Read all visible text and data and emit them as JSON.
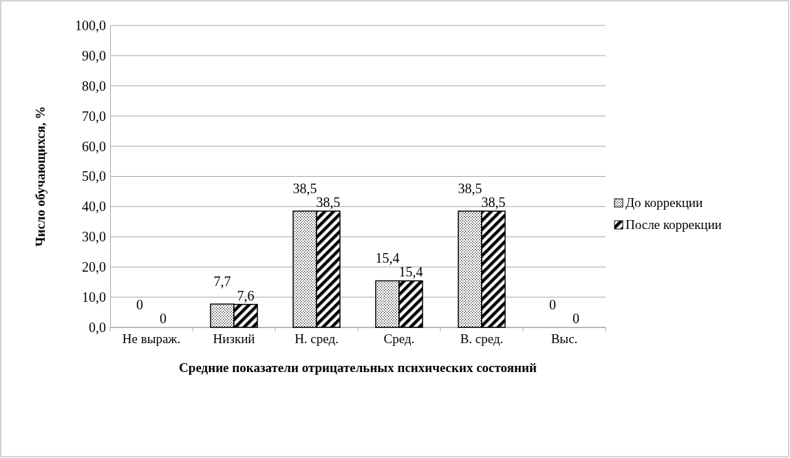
{
  "chart_data": {
    "type": "bar",
    "xlabel": "Средние показатели отрицательных психических состояний",
    "ylabel": "Число обучающихся, %",
    "categories": [
      "Не выраж.",
      "Низкий",
      "Н. сред.",
      "Сред.",
      "В. сред.",
      "Выс."
    ],
    "series": [
      {
        "name": "До коррекции",
        "color": "#000000",
        "values": [
          0,
          7.7,
          38.5,
          15.4,
          38.5,
          0
        ],
        "value_labels": [
          "0",
          "7,7",
          "38,5",
          "15,4",
          "38,5",
          "0"
        ]
      },
      {
        "name": "После коррекции",
        "color": "#000000",
        "values": [
          0,
          7.6,
          38.5,
          15.4,
          38.5,
          0
        ],
        "value_labels": [
          "0",
          "7,6",
          "38,5",
          "15,4",
          "38,5",
          "0"
        ]
      }
    ],
    "ylim": [
      0,
      100
    ],
    "yticks": [
      {
        "value": 0,
        "label": "0,0"
      },
      {
        "value": 10,
        "label": "10,0"
      },
      {
        "value": 20,
        "label": "20,0"
      },
      {
        "value": 30,
        "label": "30,0"
      },
      {
        "value": 40,
        "label": "40,0"
      },
      {
        "value": 50,
        "label": "50,0"
      },
      {
        "value": 60,
        "label": "60,0"
      },
      {
        "value": 70,
        "label": "70,0"
      },
      {
        "value": 80,
        "label": "80,0"
      },
      {
        "value": 90,
        "label": "90,0"
      },
      {
        "value": 100,
        "label": "100,0"
      }
    ],
    "grid": "y",
    "legend": "right"
  }
}
